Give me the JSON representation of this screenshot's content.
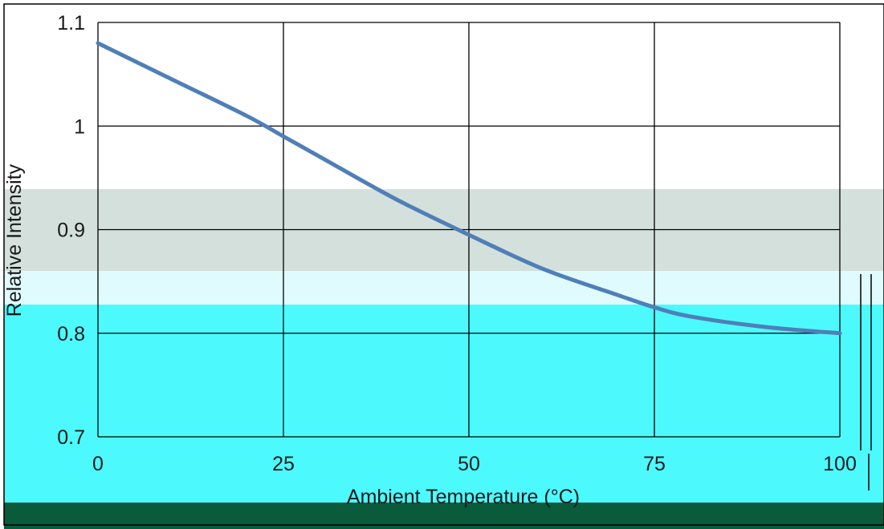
{
  "chart_data": {
    "type": "line",
    "x": [
      0,
      10,
      20,
      25,
      30,
      40,
      50,
      60,
      70,
      75,
      80,
      90,
      100
    ],
    "series": [
      {
        "values": [
          1.08,
          1.045,
          1.01,
          0.99,
          0.97,
          0.93,
          0.895,
          0.862,
          0.837,
          0.825,
          0.816,
          0.806,
          0.8
        ]
      }
    ],
    "xlabel": "Ambient Temperature (°C)",
    "ylabel": "Relative Intensity",
    "xticks": [
      "0",
      "25",
      "50",
      "75",
      "100"
    ],
    "yticks": [
      "0.7",
      "0.8",
      "0.9",
      "1",
      "1.1"
    ],
    "xlim": [
      0,
      100
    ],
    "ylim": [
      0.7,
      1.1
    ],
    "grid": true,
    "colors": {
      "line": "#4f7fb8",
      "grid": "#000000",
      "band_grey": "#d3e0dc",
      "band_light_cyan": "#e0fbfe",
      "band_cyan": "#4cfafe",
      "band_green": "#0a5a3c"
    }
  }
}
